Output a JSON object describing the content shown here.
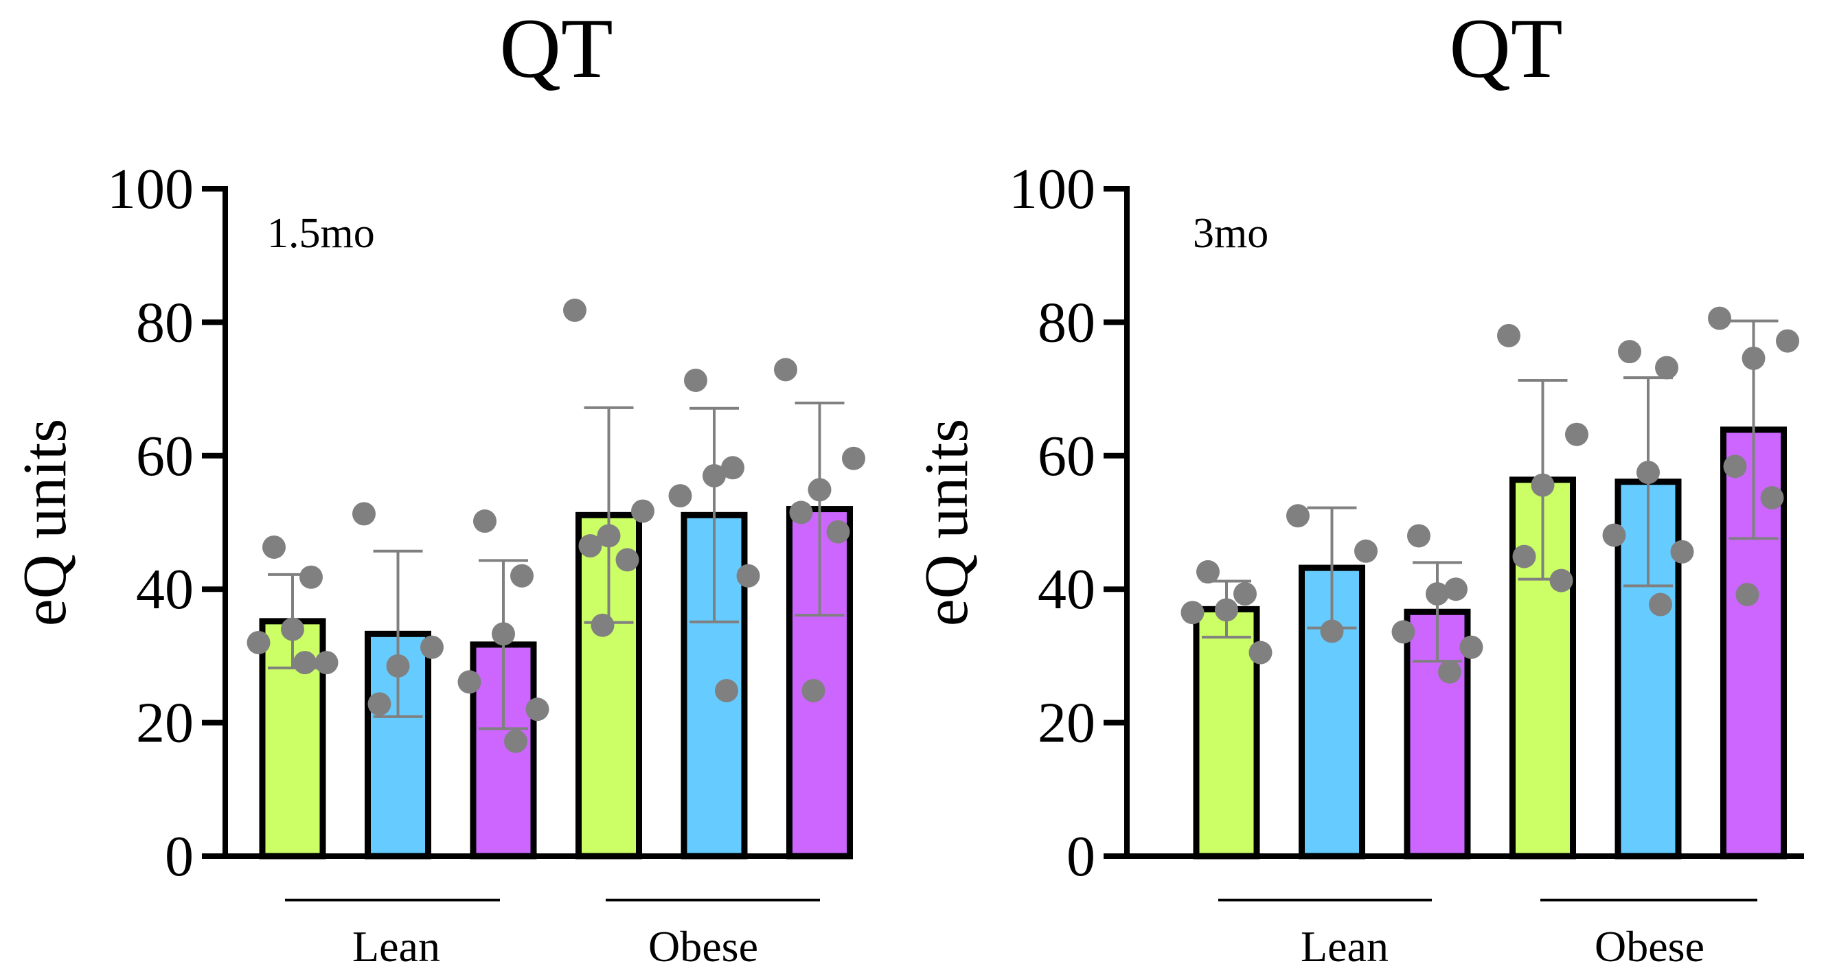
{
  "chart_data": [
    {
      "type": "bar",
      "title": "QT",
      "annotation": "1.5mo",
      "ylabel": "eQ units",
      "xlabel": "",
      "ylim": [
        0,
        100
      ],
      "yticks": [
        "0",
        "20",
        "40",
        "60",
        "80",
        "100"
      ],
      "groups": [
        "Lean",
        "Obese"
      ],
      "colors": [
        "#ccff66",
        "#66ccff",
        "#cc66ff"
      ],
      "point_color": "#808080",
      "error_color": "#808080",
      "bars": [
        {
          "group": "Lean",
          "mean": 35.2,
          "sd": 7.0,
          "points": [
            46.3,
            41.8,
            34.0,
            32.0,
            29.0,
            29.0
          ]
        },
        {
          "group": "Lean",
          "mean": 33.3,
          "sd": 12.4,
          "points": [
            51.3,
            31.3,
            28.5,
            22.8
          ]
        },
        {
          "group": "Lean",
          "mean": 31.7,
          "sd": 12.6,
          "points": [
            50.2,
            42.0,
            33.3,
            26.1,
            22.0,
            17.2
          ]
        },
        {
          "group": "Obese",
          "mean": 51.1,
          "sd": 16.1,
          "points": [
            81.8,
            51.7,
            48.0,
            46.5,
            44.4,
            34.6
          ]
        },
        {
          "group": "Obese",
          "mean": 51.1,
          "sd": 16.0,
          "points": [
            71.3,
            58.2,
            57.0,
            54.0,
            42.0,
            24.8
          ]
        },
        {
          "group": "Obese",
          "mean": 52.0,
          "sd": 15.9,
          "points": [
            72.9,
            59.6,
            54.9,
            51.5,
            48.6,
            24.8
          ]
        }
      ]
    },
    {
      "type": "bar",
      "title": "QT",
      "annotation": "3mo",
      "ylabel": "eQ units",
      "xlabel": "",
      "ylim": [
        0,
        100
      ],
      "yticks": [
        "0",
        "20",
        "40",
        "60",
        "80",
        "100"
      ],
      "groups": [
        "Lean",
        "Obese"
      ],
      "colors": [
        "#ccff66",
        "#66ccff",
        "#cc66ff"
      ],
      "point_color": "#808080",
      "error_color": "#808080",
      "bars": [
        {
          "group": "Lean",
          "mean": 37.0,
          "sd": 4.2,
          "points": [
            42.6,
            39.3,
            36.9,
            36.5,
            30.5
          ]
        },
        {
          "group": "Lean",
          "mean": 43.2,
          "sd": 9.0,
          "points": [
            51.0,
            45.7,
            33.7
          ]
        },
        {
          "group": "Lean",
          "mean": 36.6,
          "sd": 7.4,
          "points": [
            48.0,
            40.0,
            39.3,
            33.6,
            31.3,
            27.6
          ]
        },
        {
          "group": "Obese",
          "mean": 56.4,
          "sd": 14.9,
          "points": [
            78.0,
            63.2,
            55.6,
            44.9,
            41.3
          ]
        },
        {
          "group": "Obese",
          "mean": 56.1,
          "sd": 15.6,
          "points": [
            75.6,
            73.2,
            57.5,
            48.1,
            45.6,
            37.7
          ]
        },
        {
          "group": "Obese",
          "mean": 63.9,
          "sd": 16.3,
          "points": [
            80.6,
            77.2,
            74.6,
            58.4,
            53.7,
            39.2
          ]
        }
      ]
    }
  ]
}
